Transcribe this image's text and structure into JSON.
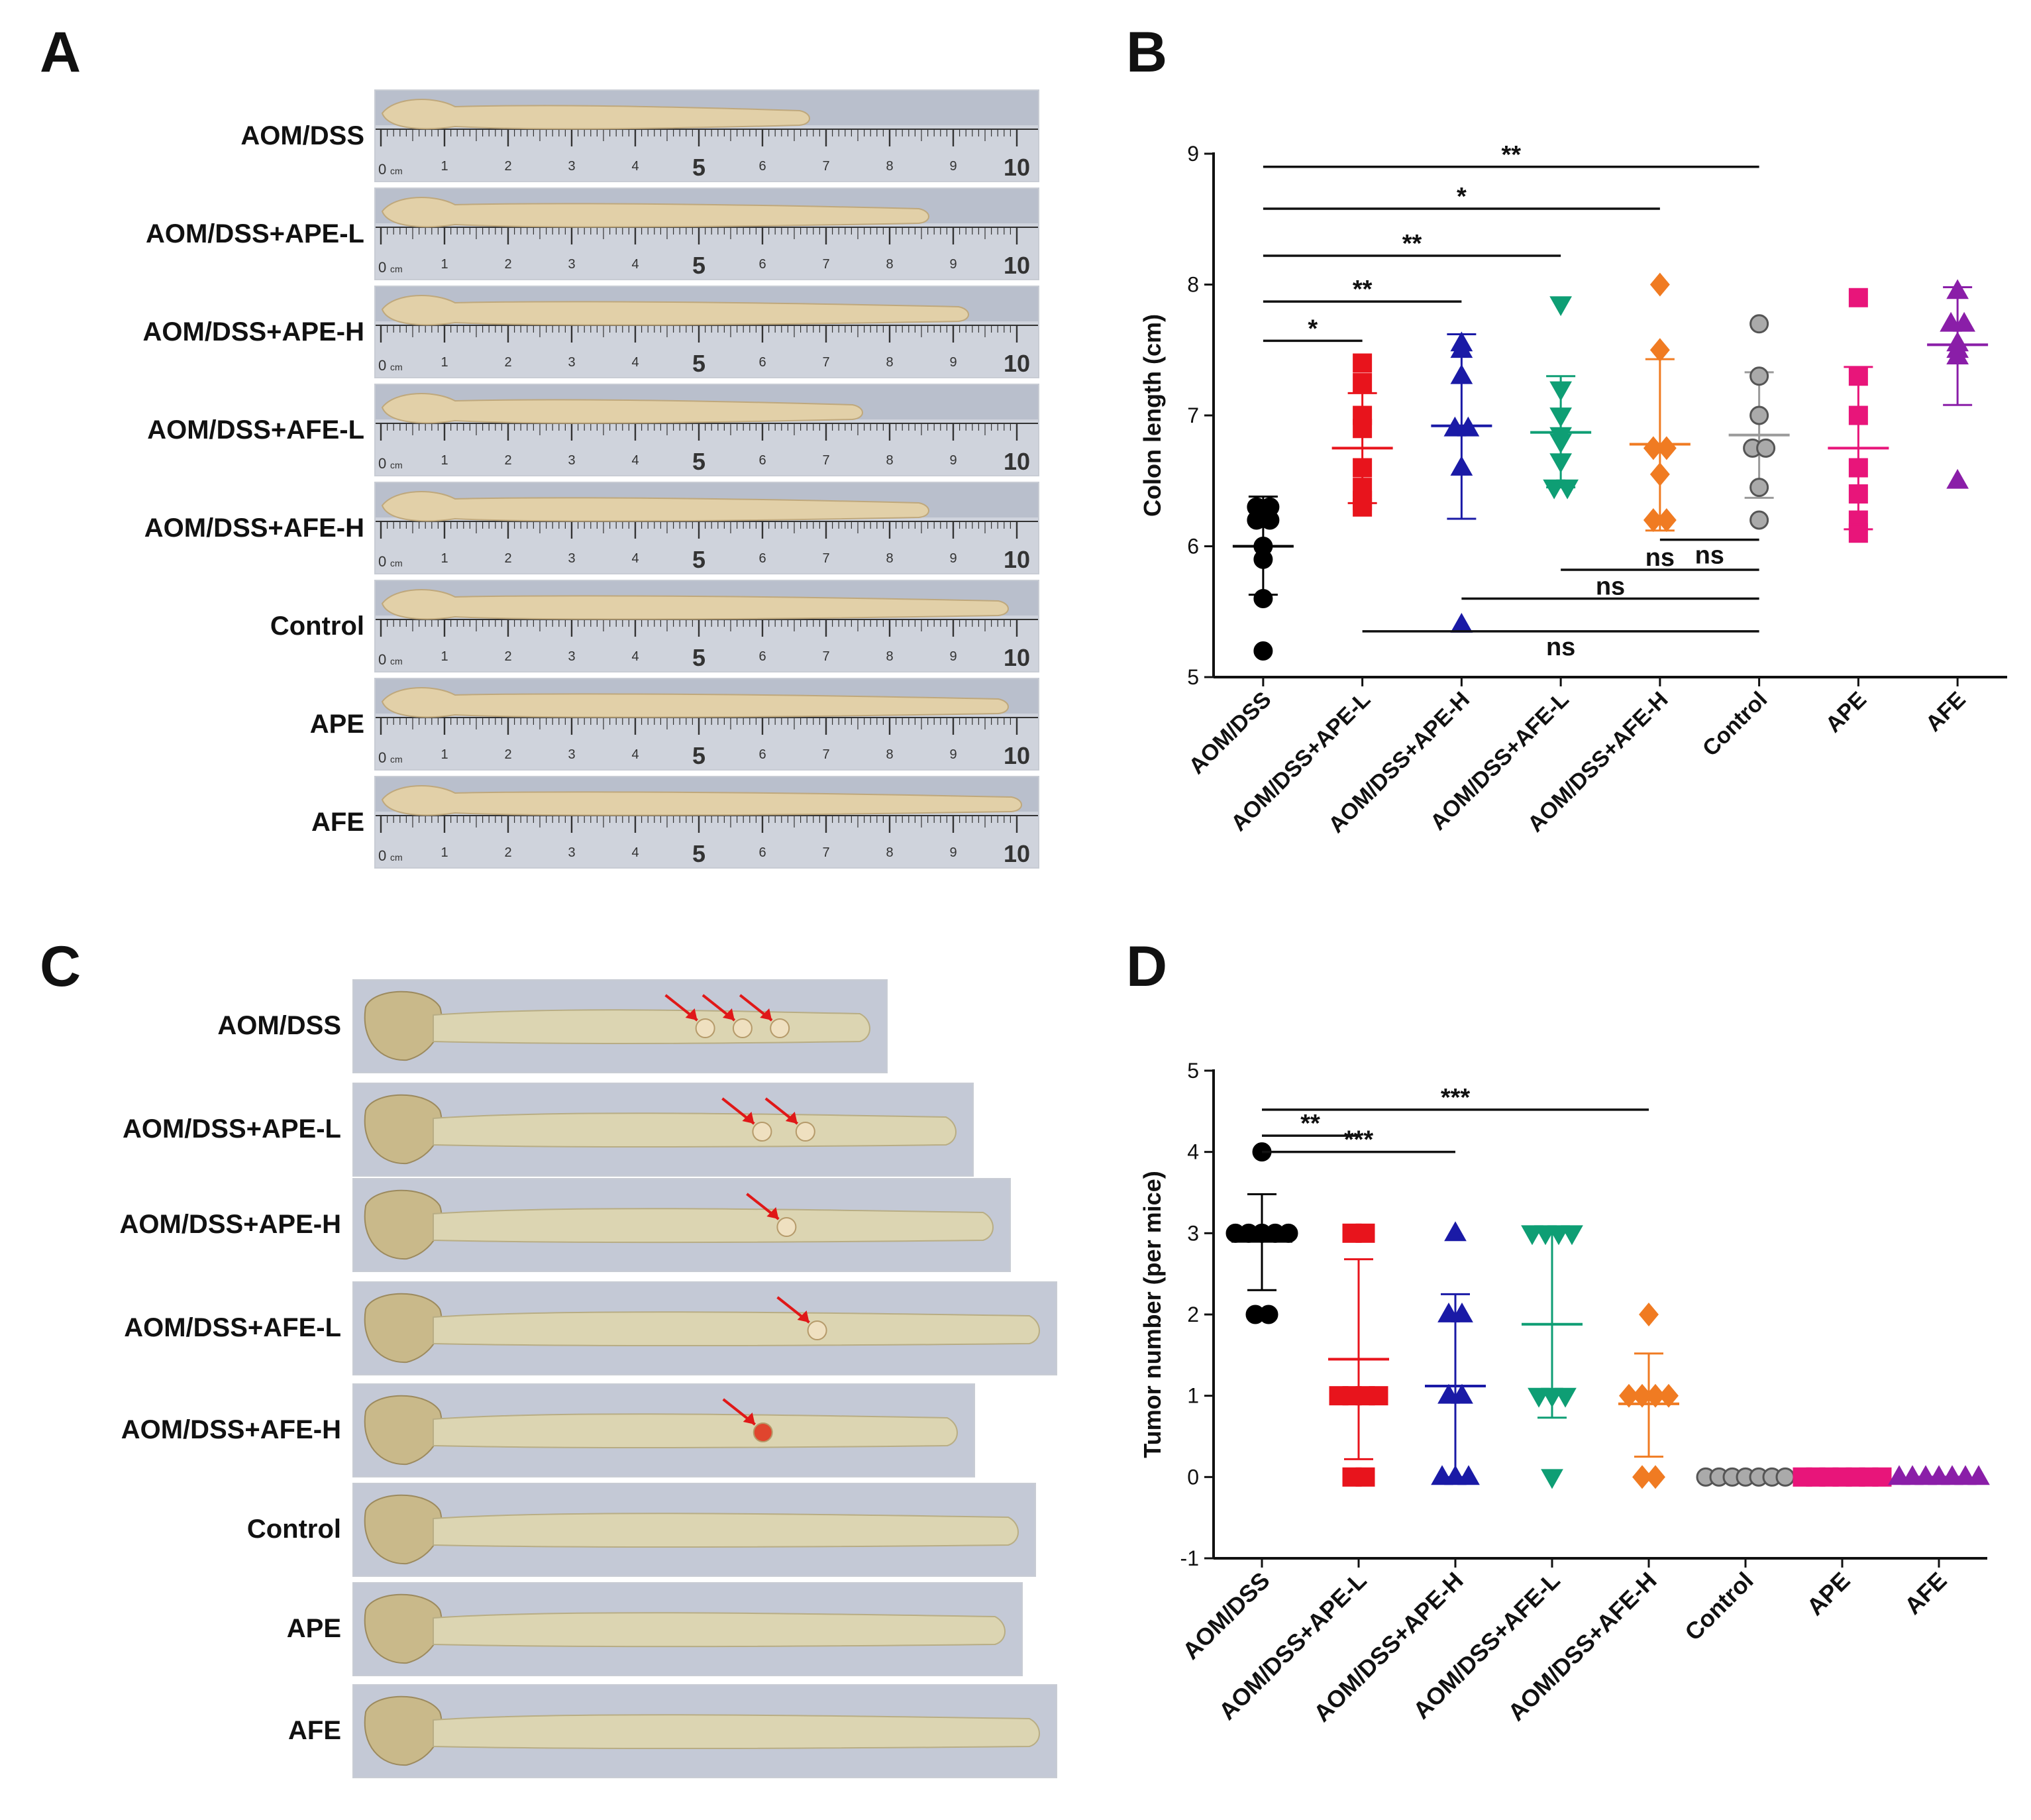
{
  "panel_letters": {
    "a": "A",
    "b": "B",
    "c": "C",
    "d": "D"
  },
  "panel_a": {
    "groups": [
      "AOM/DSS",
      "AOM/DSS+APE-L",
      "AOM/DSS+APE-H",
      "AOM/DSS+AFE-L",
      "AOM/DSS+AFE-H",
      "Control",
      "APE",
      "AFE"
    ],
    "colon_fraction": [
      0.66,
      0.84,
      0.9,
      0.74,
      0.84,
      0.96,
      0.96,
      0.98
    ],
    "ruler_numbers": [
      "1",
      "2",
      "3",
      "4",
      "5",
      "6",
      "7",
      "8",
      "9",
      "10"
    ],
    "ruler_unit": "cm",
    "ruler_zero": "0"
  },
  "panel_c": {
    "groups": [
      "AOM/DSS",
      "AOM/DSS+APE-L",
      "AOM/DSS+APE-H",
      "AOM/DSS+AFE-L",
      "AOM/DSS+AFE-H",
      "Control",
      "APE",
      "AFE"
    ],
    "tumor_arrows": [
      3,
      2,
      1,
      1,
      1,
      0,
      0,
      0
    ]
  },
  "colors": {
    "AOM/DSS": "#000000",
    "AOM/DSS+APE-L": "#e8141c",
    "AOM/DSS+APE-H": "#1a1aa6",
    "AOM/DSS+AFE-L": "#0e9e74",
    "AOM/DSS+AFE-H": "#f07b22",
    "Control": "#9a9a9a",
    "APE": "#e8157a",
    "AFE": "#8a1ea8",
    "arrow": "#e01818"
  },
  "chart_data": [
    {
      "panel": "B",
      "type": "scatter",
      "title": "",
      "xlabel": "",
      "ylabel": "Colon length (cm)",
      "ylim": [
        5,
        9
      ],
      "yticks": [
        "5",
        "6",
        "7",
        "8",
        "9"
      ],
      "categories": [
        "AOM/DSS",
        "AOM/DSS+APE-L",
        "AOM/DSS+APE-H",
        "AOM/DSS+AFE-L",
        "AOM/DSS+AFE-H",
        "Control",
        "APE",
        "AFE"
      ],
      "series": [
        {
          "name": "AOM/DSS",
          "marker": "circle",
          "values": [
            6.3,
            6.3,
            6.2,
            6.2,
            6.0,
            5.9,
            5.6,
            5.2
          ],
          "mean": 6.0,
          "sd_low": 5.63,
          "sd_high": 6.38
        },
        {
          "name": "AOM/DSS+APE-L",
          "marker": "square",
          "values": [
            7.4,
            7.25,
            7.0,
            6.9,
            6.6,
            6.45,
            6.35,
            6.3
          ],
          "mean": 6.75,
          "sd_low": 6.33,
          "sd_high": 7.17
        },
        {
          "name": "AOM/DSS+APE-H",
          "marker": "triangle",
          "values": [
            7.55,
            7.5,
            7.3,
            6.9,
            6.9,
            6.6,
            5.4
          ],
          "mean": 6.92,
          "sd_low": 6.21,
          "sd_high": 7.62
        },
        {
          "name": "AOM/DSS+AFE-L",
          "marker": "triangle-down",
          "values": [
            7.85,
            7.2,
            7.0,
            6.85,
            6.8,
            6.65,
            6.45,
            6.45
          ],
          "mean": 6.87,
          "sd_low": 6.45,
          "sd_high": 7.3
        },
        {
          "name": "AOM/DSS+AFE-H",
          "marker": "diamond",
          "values": [
            8.0,
            7.5,
            6.75,
            6.75,
            6.55,
            6.2,
            6.2
          ],
          "mean": 6.78,
          "sd_low": 6.12,
          "sd_high": 7.43
        },
        {
          "name": "Control",
          "marker": "circle",
          "values": [
            7.7,
            7.3,
            7.0,
            6.75,
            6.75,
            6.45,
            6.2
          ],
          "mean": 6.85,
          "sd_low": 6.37,
          "sd_high": 7.33
        },
        {
          "name": "APE",
          "marker": "square",
          "values": [
            7.9,
            7.3,
            7.0,
            6.6,
            6.4,
            6.2,
            6.1
          ],
          "mean": 6.75,
          "sd_low": 6.13,
          "sd_high": 7.37
        },
        {
          "name": "AFE",
          "marker": "triangle",
          "values": [
            7.95,
            7.7,
            7.7,
            7.55,
            7.5,
            7.45,
            6.5
          ],
          "mean": 7.54,
          "sd_low": 7.08,
          "sd_high": 7.98
        }
      ],
      "significance": [
        {
          "from": 0,
          "to": 5,
          "y": 8.9,
          "label": "**"
        },
        {
          "from": 0,
          "to": 4,
          "y": 8.58,
          "label": "*"
        },
        {
          "from": 0,
          "to": 3,
          "y": 8.22,
          "label": "**"
        },
        {
          "from": 0,
          "to": 2,
          "y": 7.87,
          "label": "**"
        },
        {
          "from": 0,
          "to": 1,
          "y": 7.57,
          "label": "*"
        },
        {
          "from": 4,
          "to": 5,
          "y": 6.05,
          "label": "ns",
          "label_side": "below"
        },
        {
          "from": 3,
          "to": 5,
          "y": 5.82,
          "label": "ns",
          "label_side": "above"
        },
        {
          "from": 2,
          "to": 5,
          "y": 5.6,
          "label": "ns",
          "label_side": "above"
        },
        {
          "from": 1,
          "to": 5,
          "y": 5.35,
          "label": "ns",
          "label_side": "below"
        }
      ]
    },
    {
      "panel": "D",
      "type": "scatter",
      "title": "",
      "xlabel": "",
      "ylabel": "Tumor number (per mice)",
      "ylim": [
        -1,
        5
      ],
      "yticks": [
        "-1",
        "0",
        "1",
        "2",
        "3",
        "4",
        "5"
      ],
      "categories": [
        "AOM/DSS",
        "AOM/DSS+APE-L",
        "AOM/DSS+APE-H",
        "AOM/DSS+AFE-L",
        "AOM/DSS+AFE-H",
        "Control",
        "APE",
        "AFE"
      ],
      "series": [
        {
          "name": "AOM/DSS",
          "marker": "circle",
          "values": [
            4,
            3,
            3,
            3,
            3,
            3,
            2,
            2
          ],
          "mean": 2.9,
          "sd_low": 2.3,
          "sd_high": 3.48
        },
        {
          "name": "AOM/DSS+APE-L",
          "marker": "square",
          "values": [
            3,
            3,
            1,
            1,
            1,
            1,
            0,
            0
          ],
          "mean": 1.45,
          "sd_low": 0.22,
          "sd_high": 2.68
        },
        {
          "name": "AOM/DSS+APE-H",
          "marker": "triangle",
          "values": [
            3,
            2,
            2,
            1,
            1,
            0,
            0,
            0
          ],
          "mean": 1.12,
          "sd_low": 0.0,
          "sd_high": 2.25
        },
        {
          "name": "AOM/DSS+AFE-L",
          "marker": "triangle-down",
          "values": [
            3,
            3,
            3,
            3,
            1,
            1,
            1,
            0
          ],
          "mean": 1.88,
          "sd_low": 0.73,
          "sd_high": 3.03
        },
        {
          "name": "AOM/DSS+AFE-H",
          "marker": "diamond",
          "values": [
            2,
            1,
            1,
            1,
            1,
            0,
            0
          ],
          "mean": 0.9,
          "sd_low": 0.25,
          "sd_high": 1.52
        },
        {
          "name": "Control",
          "marker": "circle",
          "values": [
            0,
            0,
            0,
            0,
            0,
            0,
            0
          ],
          "mean": 0,
          "sd_low": 0,
          "sd_high": 0
        },
        {
          "name": "APE",
          "marker": "square",
          "values": [
            0,
            0,
            0,
            0,
            0,
            0,
            0
          ],
          "mean": 0,
          "sd_low": 0,
          "sd_high": 0
        },
        {
          "name": "AFE",
          "marker": "triangle",
          "values": [
            0,
            0,
            0,
            0,
            0,
            0,
            0
          ],
          "mean": 0,
          "sd_low": 0,
          "sd_high": 0
        }
      ],
      "significance": [
        {
          "from": 0,
          "to": 4,
          "y": 4.52,
          "label": "***"
        },
        {
          "from": 0,
          "to": 2,
          "y": 4.0,
          "label": "***"
        },
        {
          "from": 0,
          "to": 1,
          "y": 4.2,
          "label": "**",
          "short": true
        }
      ]
    }
  ]
}
